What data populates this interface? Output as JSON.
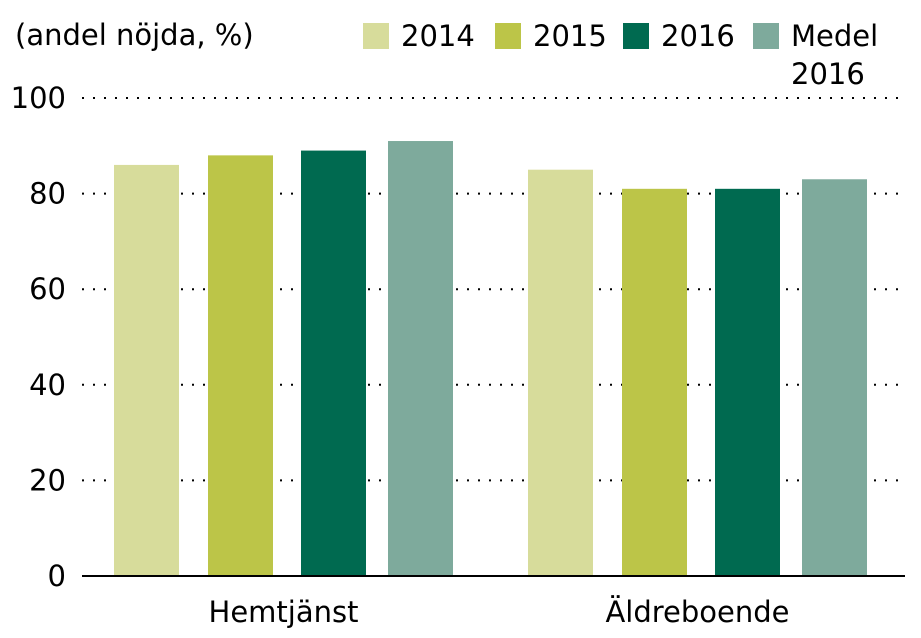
{
  "chart_data": {
    "type": "bar",
    "title": "",
    "unit_label": "(andel nöjda, %)",
    "xlabel": "",
    "ylabel": "",
    "ylim": [
      0,
      100
    ],
    "yticks": [
      0,
      20,
      40,
      60,
      80,
      100
    ],
    "grid": "horizontal-dotted",
    "legend_position": "top",
    "categories": [
      "Hemtjänst",
      "Äldreboende"
    ],
    "series": [
      {
        "name": "2014",
        "color": "#d7dc9b",
        "values": [
          86,
          85
        ]
      },
      {
        "name": "2015",
        "color": "#bcc548",
        "values": [
          88,
          81
        ]
      },
      {
        "name": "2016",
        "color": "#006a50",
        "values": [
          89,
          81
        ]
      },
      {
        "name": "Medel 2016",
        "color": "#7eaa9c",
        "values": [
          91,
          83
        ]
      }
    ]
  }
}
